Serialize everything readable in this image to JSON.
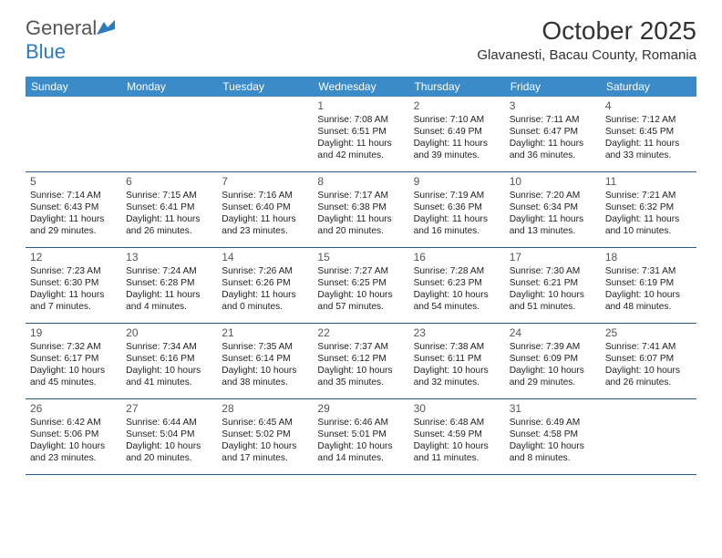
{
  "logo": {
    "general": "General",
    "blue": "Blue"
  },
  "title": "October 2025",
  "location": "Glavanesti, Bacau County, Romania",
  "colors": {
    "header_bg": "#3b8bc9",
    "header_text": "#ffffff",
    "week_border": "#2b5a85",
    "logo_blue": "#2b7bbf",
    "logo_gray": "#555555"
  },
  "day_names": [
    "Sunday",
    "Monday",
    "Tuesday",
    "Wednesday",
    "Thursday",
    "Friday",
    "Saturday"
  ],
  "first_weekday": 3,
  "days": [
    {
      "n": 1,
      "sr": "7:08 AM",
      "ss": "6:51 PM",
      "dl": "11 hours and 42 minutes."
    },
    {
      "n": 2,
      "sr": "7:10 AM",
      "ss": "6:49 PM",
      "dl": "11 hours and 39 minutes."
    },
    {
      "n": 3,
      "sr": "7:11 AM",
      "ss": "6:47 PM",
      "dl": "11 hours and 36 minutes."
    },
    {
      "n": 4,
      "sr": "7:12 AM",
      "ss": "6:45 PM",
      "dl": "11 hours and 33 minutes."
    },
    {
      "n": 5,
      "sr": "7:14 AM",
      "ss": "6:43 PM",
      "dl": "11 hours and 29 minutes."
    },
    {
      "n": 6,
      "sr": "7:15 AM",
      "ss": "6:41 PM",
      "dl": "11 hours and 26 minutes."
    },
    {
      "n": 7,
      "sr": "7:16 AM",
      "ss": "6:40 PM",
      "dl": "11 hours and 23 minutes."
    },
    {
      "n": 8,
      "sr": "7:17 AM",
      "ss": "6:38 PM",
      "dl": "11 hours and 20 minutes."
    },
    {
      "n": 9,
      "sr": "7:19 AM",
      "ss": "6:36 PM",
      "dl": "11 hours and 16 minutes."
    },
    {
      "n": 10,
      "sr": "7:20 AM",
      "ss": "6:34 PM",
      "dl": "11 hours and 13 minutes."
    },
    {
      "n": 11,
      "sr": "7:21 AM",
      "ss": "6:32 PM",
      "dl": "11 hours and 10 minutes."
    },
    {
      "n": 12,
      "sr": "7:23 AM",
      "ss": "6:30 PM",
      "dl": "11 hours and 7 minutes."
    },
    {
      "n": 13,
      "sr": "7:24 AM",
      "ss": "6:28 PM",
      "dl": "11 hours and 4 minutes."
    },
    {
      "n": 14,
      "sr": "7:26 AM",
      "ss": "6:26 PM",
      "dl": "11 hours and 0 minutes."
    },
    {
      "n": 15,
      "sr": "7:27 AM",
      "ss": "6:25 PM",
      "dl": "10 hours and 57 minutes."
    },
    {
      "n": 16,
      "sr": "7:28 AM",
      "ss": "6:23 PM",
      "dl": "10 hours and 54 minutes."
    },
    {
      "n": 17,
      "sr": "7:30 AM",
      "ss": "6:21 PM",
      "dl": "10 hours and 51 minutes."
    },
    {
      "n": 18,
      "sr": "7:31 AM",
      "ss": "6:19 PM",
      "dl": "10 hours and 48 minutes."
    },
    {
      "n": 19,
      "sr": "7:32 AM",
      "ss": "6:17 PM",
      "dl": "10 hours and 45 minutes."
    },
    {
      "n": 20,
      "sr": "7:34 AM",
      "ss": "6:16 PM",
      "dl": "10 hours and 41 minutes."
    },
    {
      "n": 21,
      "sr": "7:35 AM",
      "ss": "6:14 PM",
      "dl": "10 hours and 38 minutes."
    },
    {
      "n": 22,
      "sr": "7:37 AM",
      "ss": "6:12 PM",
      "dl": "10 hours and 35 minutes."
    },
    {
      "n": 23,
      "sr": "7:38 AM",
      "ss": "6:11 PM",
      "dl": "10 hours and 32 minutes."
    },
    {
      "n": 24,
      "sr": "7:39 AM",
      "ss": "6:09 PM",
      "dl": "10 hours and 29 minutes."
    },
    {
      "n": 25,
      "sr": "7:41 AM",
      "ss": "6:07 PM",
      "dl": "10 hours and 26 minutes."
    },
    {
      "n": 26,
      "sr": "6:42 AM",
      "ss": "5:06 PM",
      "dl": "10 hours and 23 minutes."
    },
    {
      "n": 27,
      "sr": "6:44 AM",
      "ss": "5:04 PM",
      "dl": "10 hours and 20 minutes."
    },
    {
      "n": 28,
      "sr": "6:45 AM",
      "ss": "5:02 PM",
      "dl": "10 hours and 17 minutes."
    },
    {
      "n": 29,
      "sr": "6:46 AM",
      "ss": "5:01 PM",
      "dl": "10 hours and 14 minutes."
    },
    {
      "n": 30,
      "sr": "6:48 AM",
      "ss": "4:59 PM",
      "dl": "10 hours and 11 minutes."
    },
    {
      "n": 31,
      "sr": "6:49 AM",
      "ss": "4:58 PM",
      "dl": "10 hours and 8 minutes."
    }
  ],
  "labels": {
    "sunrise": "Sunrise:",
    "sunset": "Sunset:",
    "daylight": "Daylight:"
  }
}
